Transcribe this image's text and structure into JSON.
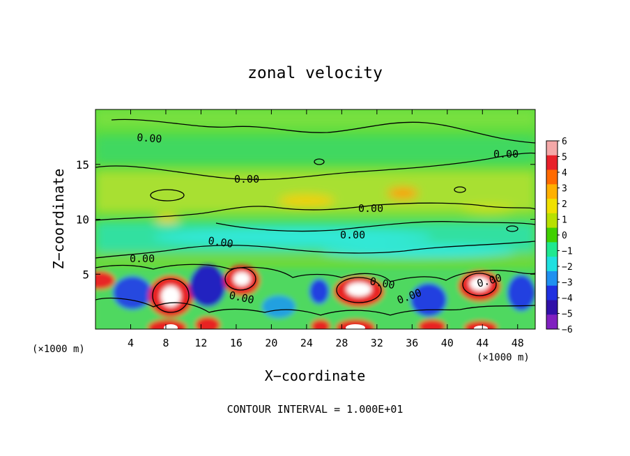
{
  "chart_data": {
    "type": "heatmap",
    "title": "zonal velocity",
    "xlabel": "X−coordinate",
    "ylabel": "Z−coordinate",
    "x_unit_left": "(×1000 m)",
    "x_unit_right": "(×1000 m)",
    "xlim": [
      0,
      50
    ],
    "ylim": [
      0,
      20
    ],
    "xticks": [
      "4",
      "8",
      "12",
      "16",
      "20",
      "24",
      "28",
      "32",
      "36",
      "40",
      "44",
      "48"
    ],
    "xtick_values": [
      4,
      8,
      12,
      16,
      20,
      24,
      28,
      32,
      36,
      40,
      44,
      48
    ],
    "yticks": [
      "5",
      "10",
      "15"
    ],
    "ytick_values": [
      5,
      10,
      15
    ],
    "colorbar_ticks": [
      "6",
      "5",
      "4",
      "3",
      "2",
      "1",
      "0",
      "−1",
      "−2",
      "−3",
      "−4",
      "−5",
      "−6"
    ],
    "colorbar_values": [
      6,
      5,
      4,
      3,
      2,
      1,
      0,
      -1,
      -2,
      -3,
      -4,
      -5,
      -6
    ],
    "colorbar_colors": [
      "#f4a8a8",
      "#e8202a",
      "#ff6a00",
      "#ffb000",
      "#f0e000",
      "#b8e000",
      "#40d000",
      "#20e890",
      "#20e0e0",
      "#2090f0",
      "#2030e0",
      "#3010a8",
      "#8020c0"
    ],
    "contour_label": "0.00",
    "footer": "CONTOUR INTERVAL = 1.000E+01",
    "grid": false,
    "legend": "right"
  },
  "colors": {
    "background": "#ffffff",
    "field_base": "#5cdc3c",
    "contour": "#000000"
  }
}
